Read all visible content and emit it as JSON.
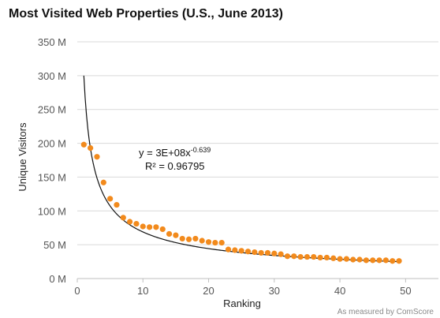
{
  "chart_data": {
    "type": "scatter",
    "title": "Most Visited Web Properties (U.S., June 2013)",
    "xlabel": "Ranking",
    "ylabel": "Unique Visitors",
    "xlim": [
      0,
      55
    ],
    "ylim": [
      0,
      350
    ],
    "x_ticks": [
      0,
      10,
      20,
      30,
      40,
      50
    ],
    "y_ticks": [
      0,
      50,
      100,
      150,
      200,
      250,
      300,
      350
    ],
    "y_tick_labels": [
      "0 M",
      "50 M",
      "100 M",
      "150 M",
      "200 M",
      "250 M",
      "300 M",
      "350 M"
    ],
    "grid": "horizontal",
    "series": [
      {
        "color": "#f28a1c",
        "x": [
          1,
          2,
          3,
          4,
          5,
          6,
          7,
          8,
          9,
          10,
          11,
          12,
          13,
          14,
          15,
          16,
          17,
          18,
          19,
          20,
          21,
          22,
          23,
          24,
          25,
          26,
          27,
          28,
          29,
          30,
          31,
          32,
          33,
          34,
          35,
          36,
          37,
          38,
          39,
          40,
          41,
          42,
          43,
          44,
          45,
          46,
          47,
          48,
          49
        ],
        "y": [
          198,
          193,
          180,
          142,
          118,
          109,
          90,
          84,
          81,
          77,
          76,
          76,
          73,
          66,
          64,
          59,
          58,
          59,
          56,
          54,
          53,
          53,
          43,
          42,
          41,
          40,
          39,
          38,
          38,
          37,
          36,
          33,
          33,
          32,
          32,
          32,
          31,
          31,
          30,
          29,
          29,
          28,
          28,
          27,
          27,
          27,
          27,
          26,
          26
        ]
      }
    ],
    "trendline": {
      "type": "power",
      "color": "#111111",
      "coefficient": 300000000,
      "exponent": -0.639,
      "x_range": [
        1,
        49
      ],
      "equation_base": "y = 3E+08x",
      "equation_exponent": "-0.639",
      "r_squared": "R² = 0.96795"
    },
    "source_note": "As measured by ComScore"
  }
}
